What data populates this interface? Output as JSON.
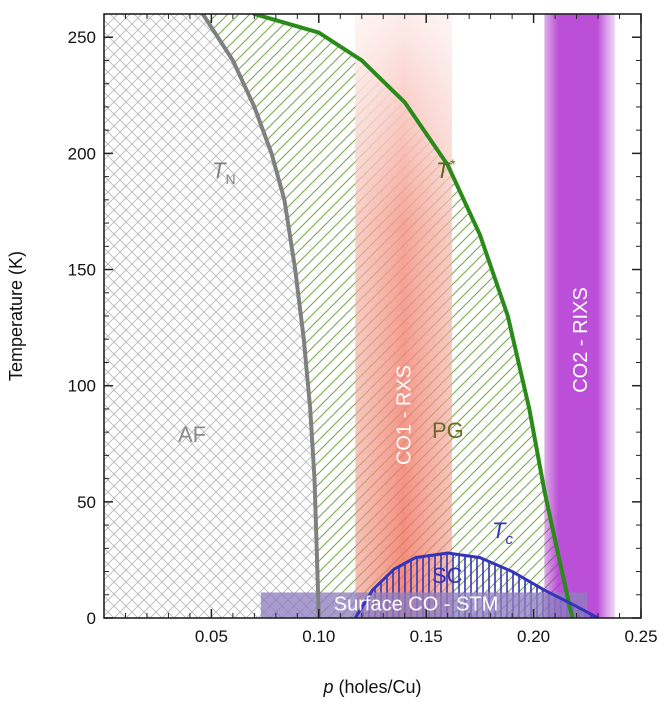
{
  "chart_data": {
    "type": "phase-diagram",
    "xlabel": {
      "var": "p",
      "rest": " (holes/Cu)"
    },
    "ylabel": "Temperature (K)",
    "xlim": [
      0,
      0.25
    ],
    "ylim": [
      0,
      260
    ],
    "xticks": [
      {
        "v": 0.05,
        "label": "0.05"
      },
      {
        "v": 0.1,
        "label": "0.10"
      },
      {
        "v": 0.15,
        "label": "0.15"
      },
      {
        "v": 0.2,
        "label": "0.20"
      },
      {
        "v": 0.25,
        "label": "0.25"
      }
    ],
    "yticks": [
      {
        "v": 0,
        "label": "0"
      },
      {
        "v": 50,
        "label": "50"
      },
      {
        "v": 100,
        "label": "100"
      },
      {
        "v": 150,
        "label": "150"
      },
      {
        "v": 200,
        "label": "200"
      },
      {
        "v": 250,
        "label": "250"
      }
    ],
    "curves": {
      "TN": {
        "label_main": "T",
        "label_sub": "N",
        "color": "#808080",
        "points": [
          [
            0.046,
            260
          ],
          [
            0.06,
            240
          ],
          [
            0.07,
            220
          ],
          [
            0.078,
            200
          ],
          [
            0.084,
            180
          ],
          [
            0.089,
            150
          ],
          [
            0.093,
            120
          ],
          [
            0.096,
            90
          ],
          [
            0.098,
            60
          ],
          [
            0.099,
            30
          ],
          [
            0.1,
            0
          ]
        ]
      },
      "Tstar": {
        "label_main": "T",
        "label_sup": "*",
        "color": "#2a8a1a",
        "points": [
          [
            0.07,
            260
          ],
          [
            0.1,
            252
          ],
          [
            0.12,
            240
          ],
          [
            0.14,
            222
          ],
          [
            0.16,
            195
          ],
          [
            0.175,
            165
          ],
          [
            0.188,
            130
          ],
          [
            0.198,
            90
          ],
          [
            0.205,
            55
          ],
          [
            0.212,
            25
          ],
          [
            0.218,
            0
          ]
        ]
      },
      "Tc": {
        "label_main": "T",
        "label_sub": "c",
        "color": "#3434b8",
        "points": [
          [
            0.117,
            0
          ],
          [
            0.125,
            12
          ],
          [
            0.135,
            21
          ],
          [
            0.145,
            26
          ],
          [
            0.16,
            28
          ],
          [
            0.175,
            26
          ],
          [
            0.19,
            20
          ],
          [
            0.205,
            12
          ],
          [
            0.22,
            5
          ],
          [
            0.23,
            0
          ]
        ]
      }
    },
    "regions": [
      {
        "label": "AF",
        "x": 0.04,
        "y": 78,
        "color": "#8c8c8c"
      },
      {
        "label": "PG",
        "x": 0.145,
        "y": 78,
        "color": "#6a6a2a"
      },
      {
        "label": "SC",
        "x": 0.155,
        "y": 16,
        "color": "#3434b8"
      }
    ],
    "bands": [
      {
        "label": "CO1 - RXS",
        "x_range": [
          0.117,
          0.162
        ],
        "color": "#e87a6a"
      },
      {
        "label": "CO2 - RIXS",
        "x_range": [
          0.205,
          0.238
        ],
        "color": "#a020c0"
      },
      {
        "label": "Surface CO - STM",
        "x_range": [
          0.073,
          0.225
        ],
        "y_range": [
          0,
          11
        ],
        "color": "#9080c0"
      }
    ]
  }
}
